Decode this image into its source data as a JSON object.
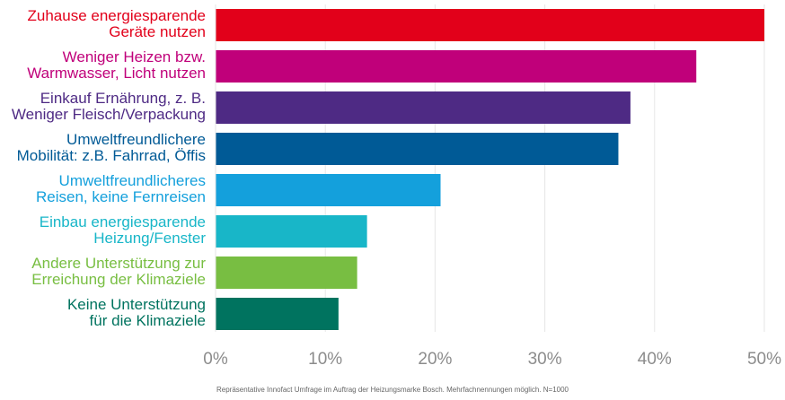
{
  "chart_data": {
    "type": "bar",
    "orientation": "horizontal",
    "categories": [
      [
        "Zuhause energiesparende",
        "Geräte nutzen"
      ],
      [
        "Weniger Heizen bzw.",
        "Warmwasser, Licht nutzen"
      ],
      [
        "Einkauf Ernährung, z. B.",
        "Weniger Fleisch/Verpackung"
      ],
      [
        "Umweltfreundlichere",
        "Mobilität: z.B. Fahrrad, Öffis"
      ],
      [
        "Umweltfreundlicheres",
        "Reisen, keine Fernreisen"
      ],
      [
        "Einbau energiesparende",
        "Heizung/Fenster"
      ],
      [
        "Andere Unterstützung zur",
        "Erreichung der Klimaziele"
      ],
      [
        "Keine Unterstützung",
        "für die Klimaziele"
      ]
    ],
    "values": [
      50,
      43.8,
      37.8,
      36.7,
      20.5,
      13.8,
      12.9,
      11.2
    ],
    "colors": [
      "#e2001a",
      "#c0007a",
      "#4e2a84",
      "#005a96",
      "#14a0dc",
      "#18b6c8",
      "#78be42",
      "#00735f"
    ],
    "xlim": [
      0,
      50
    ],
    "xticks": [
      "0%",
      "10%",
      "20%",
      "30%",
      "40%",
      "50%"
    ],
    "grid": true
  },
  "footnote": "Repräsentative Innofact Umfrage im Auftrag der Heizungsmarke Bosch. Mehrfachnennungen möglich. N=1000"
}
